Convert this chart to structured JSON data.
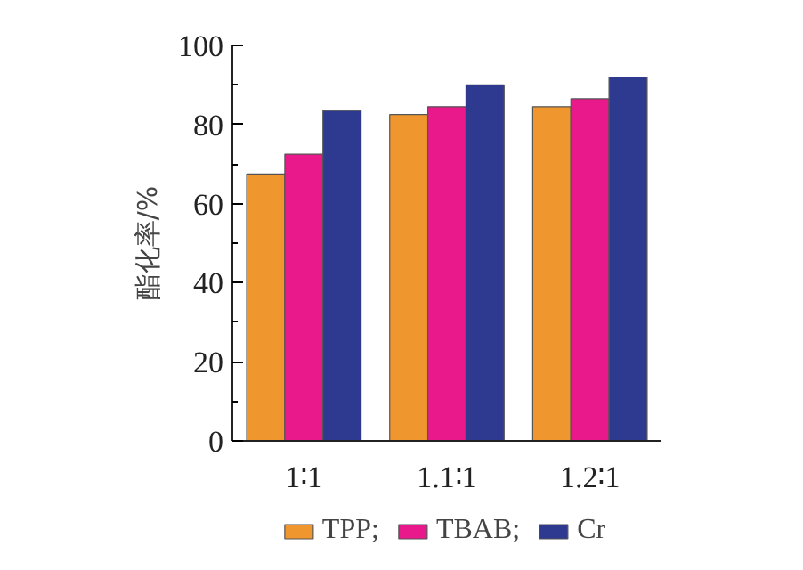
{
  "chart_data": {
    "type": "bar",
    "ylabel": "酯化率/%",
    "categories": [
      "1∶1",
      "1.1∶1",
      "1.2∶1"
    ],
    "series": [
      {
        "name": "TPP;",
        "color": "#f0962e",
        "values": [
          67.5,
          82.5,
          84.5
        ]
      },
      {
        "name": "TBAB;",
        "color": "#e9198b",
        "values": [
          72.5,
          84.5,
          86.5
        ]
      },
      {
        "name": "Cr",
        "color": "#2e3a8f",
        "values": [
          83.5,
          90,
          92
        ]
      }
    ],
    "ylim": [
      0,
      100
    ],
    "yticks": [
      0,
      20,
      40,
      60,
      80,
      100
    ],
    "grid": false,
    "legend": "bottom"
  }
}
